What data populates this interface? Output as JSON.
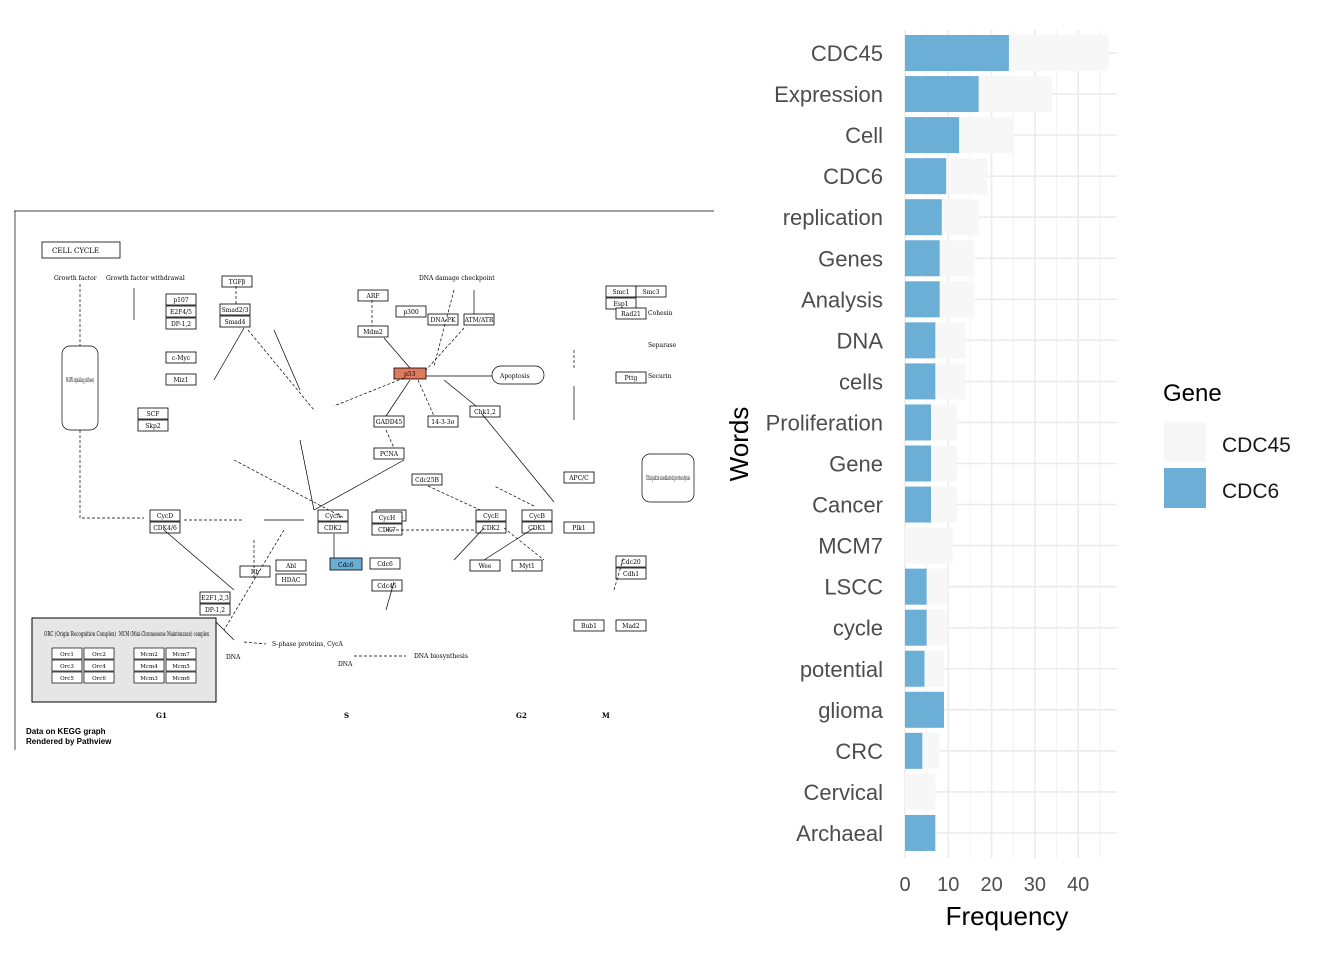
{
  "pathway_figure": {
    "title": "CELL CYCLE",
    "phases": [
      "G1",
      "S",
      "G2",
      "M"
    ],
    "footer_line1": "Data on KEGG graph",
    "footer_line2": "Rendered by Pathview",
    "highlight_up_gene": "p53",
    "highlight_up_color": "#e07a5f",
    "highlight_gene": "Cdc6",
    "highlight_color": "#6aaed6",
    "legend_box_left_title": "ORC (Origin Recognition Complex)",
    "legend_box_right_title": "MCM (Mini-Chromosome Maintenance) complex",
    "labels": {
      "growth_factor": "Growth factor",
      "growth_factor_withdrawal": "Growth factor withdrawal",
      "mapk": "MAPK signaling pathway",
      "dna_damage": "DNA damage checkpoint",
      "apoptosis": "Apoptosis",
      "cohesin": "Cohesin",
      "separase": "Separase",
      "securin": "Securin",
      "ubiquitin": "Ubiquitin mediated proteolysis",
      "s_phase_proteins": "S-phase proteins, CycA",
      "dna_biosynthesis": "DNA biosynthesis",
      "dna": "DNA"
    },
    "genes": [
      "TGFβ",
      "Smad2/3",
      "Smad4",
      "p107",
      "E2F4/5",
      "DP-1,2",
      "c-Myc",
      "Miz1",
      "SCF",
      "Skp2",
      "ARF",
      "Mdm2",
      "p300",
      "DNA-PK",
      "ATM/ATR",
      "Chk1,2",
      "GADD45",
      "14-3-3σ",
      "PCNA",
      "Cdc25B",
      "CycA",
      "CDK2",
      "Cdc25A",
      "Cdc6",
      "Cdc45",
      "CycE",
      "CDK2",
      "CycD",
      "CDK4/6",
      "Rb",
      "E2F1,2,3",
      "DP-1,2",
      "HDAC",
      "Abl",
      "CycH",
      "CDK7",
      "CycB",
      "CDK1",
      "Plk1",
      "Wee",
      "Myt1",
      "APC/C",
      "Cdc20",
      "Cdh1",
      "Bub1",
      "Mad2",
      "Smc1",
      "Smc3",
      "Esp1",
      "Pttg",
      "Rad21"
    ]
  },
  "chart_data": {
    "type": "bar",
    "orientation": "horizontal",
    "categories": [
      "CDC45",
      "Expression",
      "Cell",
      "CDC6",
      "replication",
      "Genes",
      "Analysis",
      "DNA",
      "cells",
      "Proliferation",
      "Gene",
      "Cancer",
      "MCM7",
      "LSCC",
      "cycle",
      "potential",
      "glioma",
      "CRC",
      "Cervical",
      "Archaeal"
    ],
    "series": [
      {
        "name": "CDC45",
        "color": "#f7f7f7",
        "values": [
          47,
          34,
          25,
          19,
          17,
          16,
          16,
          14,
          14,
          12,
          12,
          12,
          11,
          10,
          10,
          9,
          9,
          8,
          7,
          7
        ]
      },
      {
        "name": "CDC6",
        "color": "#6baed6",
        "values": [
          24,
          17,
          12.5,
          9.5,
          8.5,
          8,
          8,
          7,
          7,
          6,
          6,
          6,
          0,
          5,
          5,
          4.5,
          9,
          4,
          0,
          7
        ]
      }
    ],
    "xlabel": "Frequency",
    "ylabel": "Words",
    "xticks": [
      "0",
      "10",
      "20",
      "30",
      "40"
    ],
    "xlim": [
      0,
      49
    ],
    "legend_title": "Gene",
    "legend_position": "right",
    "grid": true
  }
}
